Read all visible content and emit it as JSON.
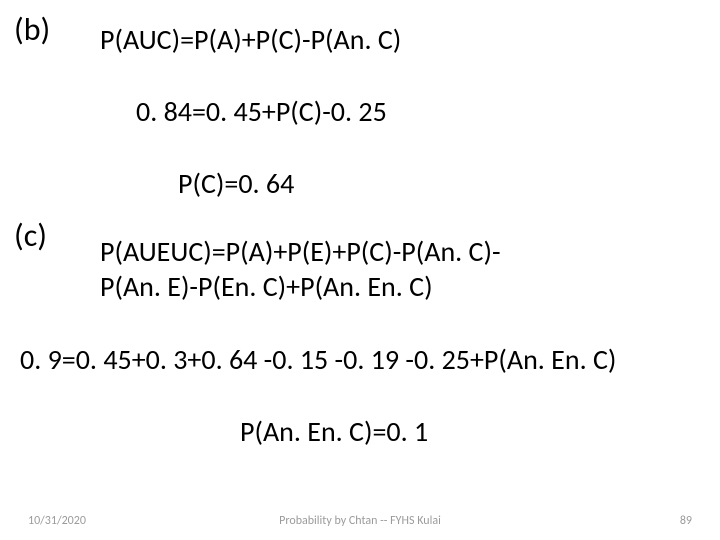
{
  "part_b": {
    "label": "(b)",
    "line1": "P(AUC)=P(A)+P(C)-P(An. C)",
    "line2": "0. 84=0. 45+P(C)-0. 25",
    "line3": "P(C)=0. 64"
  },
  "part_c": {
    "label": "(c)",
    "line1a": "P(AUEUC)=P(A)+P(E)+P(C)-P(An. C)-",
    "line1b": "P(An. E)-P(En. C)+P(An. En. C)",
    "line2": "0. 9=0. 45+0. 3+0. 64 -0. 15 -0. 19 -0. 25+P(An. En. C)",
    "line3": "P(An. En. C)=0. 1"
  },
  "footer": {
    "date": "10/31/2020",
    "title": "Probability by Chtan -- FYHS Kulai",
    "page": "89"
  },
  "style": {
    "background_color": "#ffffff",
    "text_color": "#000000",
    "footer_color": "#9b9b9b",
    "label_fontsize": 32,
    "body_fontsize": 28,
    "footer_fontsize": 12
  }
}
